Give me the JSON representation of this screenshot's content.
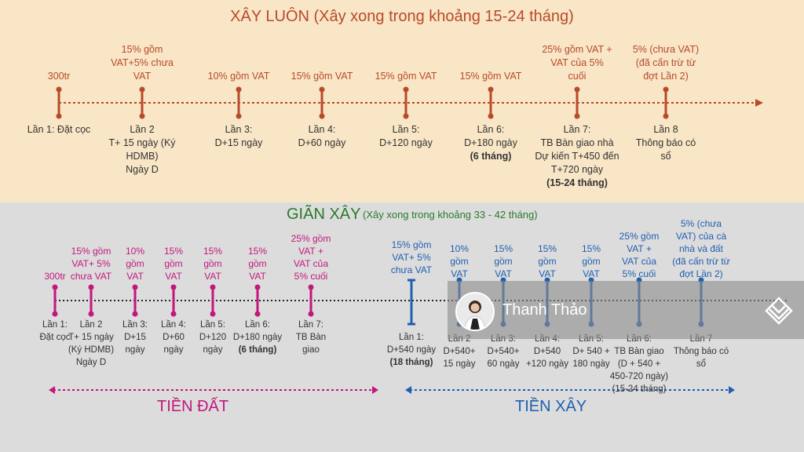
{
  "top": {
    "title": "XÂY LUÔN (Xây xong trong khoảng 15-24 tháng)",
    "stages": [
      {
        "above": "300tr",
        "below": "Lần 1: Đặt cọc",
        "below_bold": ""
      },
      {
        "above": "15% gồm\nVAT+5% chưa\nVAT",
        "below": "Lần 2\nT+ 15 ngày (Ký\nHDMB)\nNgày D",
        "below_bold": ""
      },
      {
        "above": "10% gồm VAT",
        "below": "Lần 3:\nD+15 ngày",
        "below_bold": ""
      },
      {
        "above": "15% gồm VAT",
        "below": "Lần 4:\nD+60 ngày",
        "below_bold": ""
      },
      {
        "above": "15% gồm VAT",
        "below": "Lần 5:\nD+120 ngày",
        "below_bold": ""
      },
      {
        "above": "15% gồm VAT",
        "below": "Lần 6:\nD+180 ngày",
        "below_bold": "(6 tháng)"
      },
      {
        "above": "25% gồm VAT +\nVAT của 5%\ncuối",
        "below": "Lần 7:\nTB Bàn giao nhà\nDự kiến T+450 đến\nT+720 ngày",
        "below_bold": "(15-24 tháng)"
      },
      {
        "above": "5% (chưa VAT)\n(đã cấn trừ từ\nđợt Lần 2)",
        "below": "Lần 8\nThông báo có\nsổ",
        "below_bold": ""
      }
    ]
  },
  "bottom": {
    "title": "GIÃN XÂY",
    "subtitle": "(Xây xong trong khoảng 33 - 42 tháng)",
    "land_stages": [
      {
        "above": "300tr",
        "below": "Lần 1:\nĐặt cọc",
        "below_bold": ""
      },
      {
        "above": "15% gồm\nVAT+ 5%\nchưa VAT",
        "below": "Lần 2\nT+ 15 ngày\n(Ký HDMB)\nNgày D",
        "below_bold": ""
      },
      {
        "above": "10%\ngồm\nVAT",
        "below": "Lần 3:\nD+15\nngày",
        "below_bold": ""
      },
      {
        "above": "15%\ngồm\nVAT",
        "below": "Lần 4:\nD+60\nngày",
        "below_bold": ""
      },
      {
        "above": "15%\ngồm\nVAT",
        "below": "Lần 5:\nD+120\nngày",
        "below_bold": ""
      },
      {
        "above": "15%\ngồm\nVAT",
        "below": "Lần 6:\nD+180 ngày",
        "below_bold": "(6 tháng)"
      },
      {
        "above": "25% gồm\nVAT +\nVAT của\n5% cuối",
        "below": "Lần 7:\nTB Bàn\ngiao",
        "below_bold": ""
      }
    ],
    "build_stages": [
      {
        "above": "15% gồm\nVAT+ 5%\nchưa VAT",
        "below": "Lần 1:\nD+540 ngày",
        "below_bold": "(18 tháng)"
      },
      {
        "above": "10%\ngồm\nVAT",
        "below": "Lần 2\nD+540+\n15 ngày",
        "below_bold": ""
      },
      {
        "above": "15%\ngồm\nVAT",
        "below": "Lần 3:\nD+540+\n60 ngày",
        "below_bold": ""
      },
      {
        "above": "15%\ngồm\nVAT",
        "below": "Lần 4:\nD+540\n+120 ngày",
        "below_bold": ""
      },
      {
        "above": "15%\ngồm\nVAT",
        "below": "Lần 5:\nD+ 540 +\n180 ngày",
        "below_bold": ""
      },
      {
        "above": "25% gồm\nVAT +\nVAT của\n5% cuối",
        "below": "Lần 6:\nTB Bàn giao\n(D + 540 +\n450-720 ngày)\n(15-24 tháng)",
        "below_bold": ""
      },
      {
        "above": "5% (chưa\nVAT) của cà\nnhà và đất\n(đã cấn trừ từ\nđợt Lần 2)",
        "below": "Lần 7\nThông báo có\nsổ",
        "below_bold": ""
      }
    ],
    "land_label": "TIỀN ĐẤT",
    "build_label": "TIỀN XÂY"
  },
  "watermark": {
    "name": "Thanh Thảo",
    "logo_icon": "stacked-chevrons-logo-icon"
  },
  "colors": {
    "top_bg": "#f8e6c6",
    "bottom_bg": "#dcdcdc",
    "top_accent": "#b84a2a",
    "land_accent": "#c2177d",
    "build_accent": "#1f5fb0",
    "title_green": "#2a7a2a"
  }
}
